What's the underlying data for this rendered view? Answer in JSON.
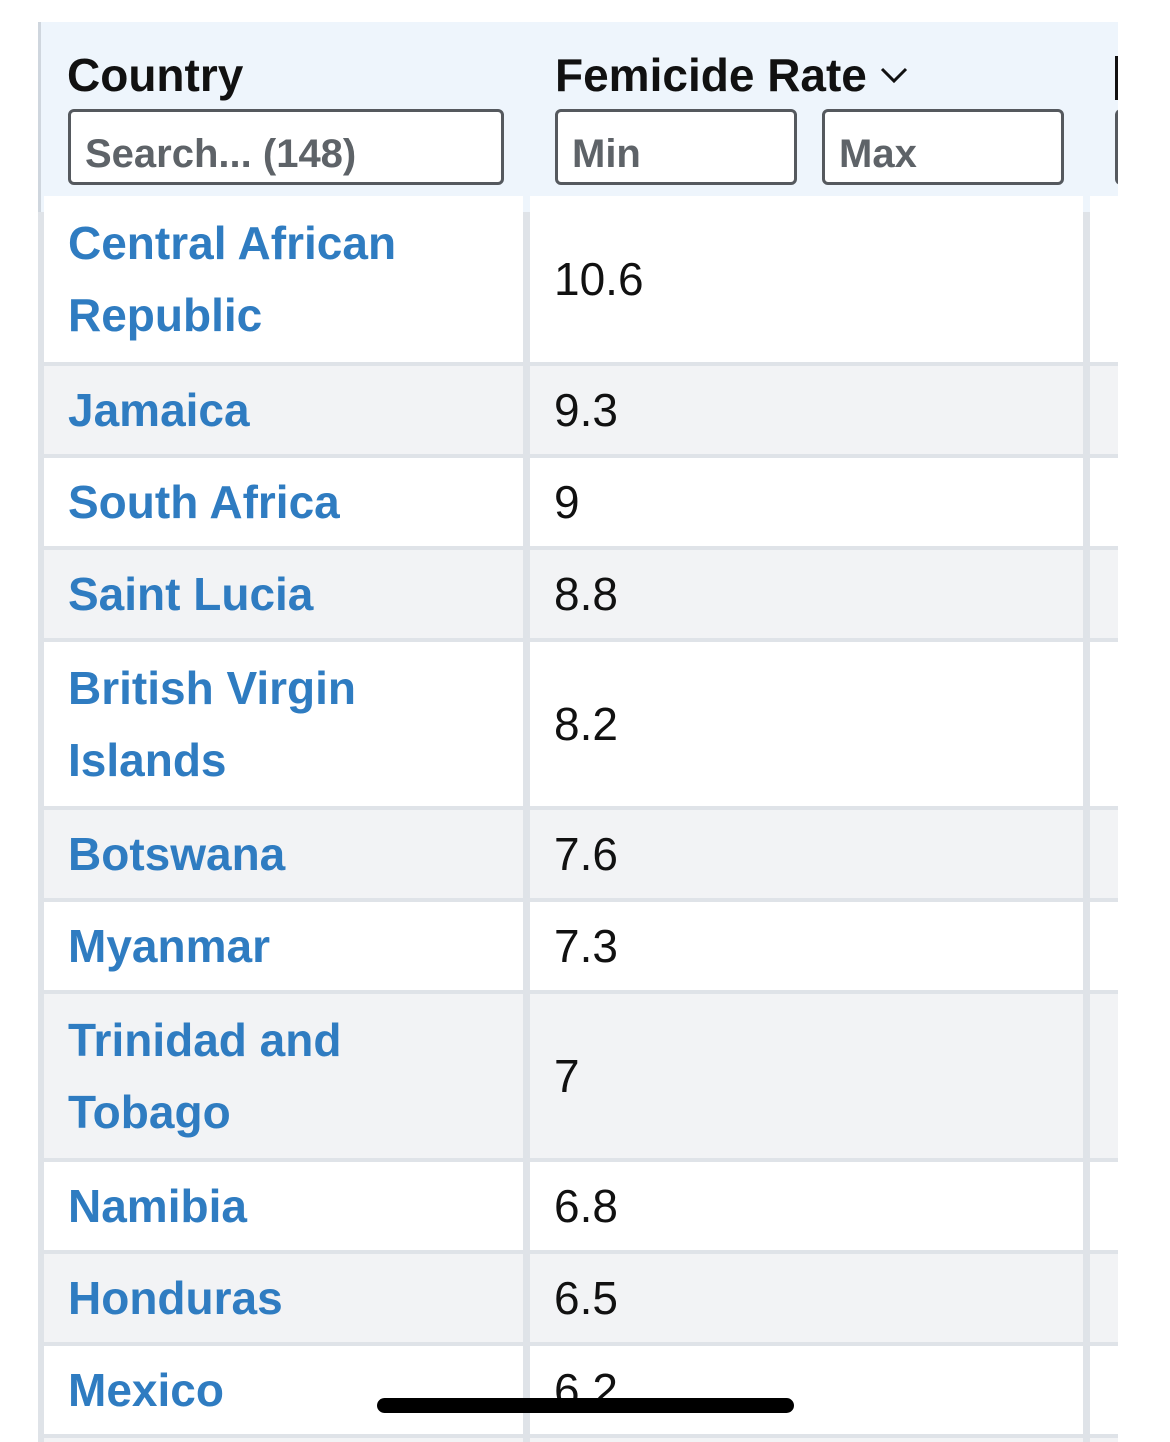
{
  "table": {
    "columns": [
      {
        "label": "Country",
        "filter_placeholder": "Search... (148)"
      },
      {
        "label": "Femicide Rate",
        "sort_icon": "chevron-down-icon",
        "filter_min_placeholder": "Min",
        "filter_max_placeholder": "Max"
      }
    ],
    "rows": [
      {
        "country": "Central African Republic",
        "rate": "10.6"
      },
      {
        "country": "Jamaica",
        "rate": "9.3"
      },
      {
        "country": "South Africa",
        "rate": "9"
      },
      {
        "country": "Saint Lucia",
        "rate": "8.8"
      },
      {
        "country": "British Virgin Islands",
        "rate": "8.2"
      },
      {
        "country": "Botswana",
        "rate": "7.6"
      },
      {
        "country": "Myanmar",
        "rate": "7.3"
      },
      {
        "country": "Trinidad and Tobago",
        "rate": "7"
      },
      {
        "country": "Namibia",
        "rate": "6.8"
      },
      {
        "country": "Honduras",
        "rate": "6.5"
      },
      {
        "country": "Mexico",
        "rate": "6.2"
      }
    ]
  },
  "colors": {
    "link": "#2f7cc1",
    "header_bg": "#eef5fc",
    "row_alt_bg": "#f2f3f5",
    "row_bg": "#ffffff"
  }
}
